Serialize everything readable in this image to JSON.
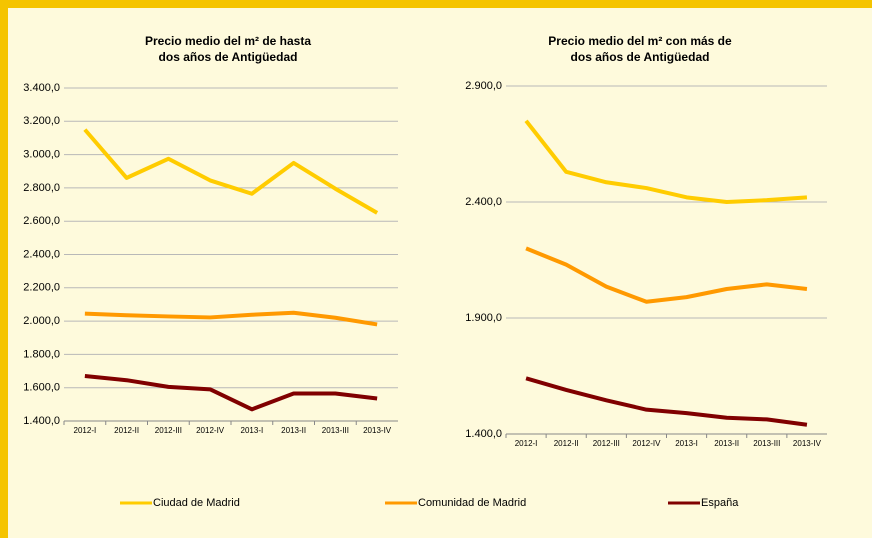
{
  "chart_data": [
    {
      "type": "line",
      "title": [
        "Precio medio del m² de hasta",
        "dos años de Antigüedad"
      ],
      "categories": [
        "2012-I",
        "2012-II",
        "2012-III",
        "2012-IV",
        "2013-I",
        "2013-II",
        "2013-III",
        "2013-IV"
      ],
      "series": [
        {
          "name": "Ciudad de Madrid",
          "color": "#ffcc00",
          "values": [
            3150,
            2860,
            2975,
            2845,
            2765,
            2950,
            2795,
            2650
          ]
        },
        {
          "name": "Comunidad de Madrid",
          "color": "#ff9900",
          "values": [
            2045,
            2035,
            2028,
            2022,
            2038,
            2050,
            2020,
            1980
          ]
        },
        {
          "name": "España",
          "color": "#800000",
          "values": [
            1670,
            1645,
            1605,
            1590,
            1470,
            1565,
            1565,
            1535
          ]
        }
      ],
      "ylim": [
        1400,
        3400
      ],
      "yticks": [
        {
          "value": 1400,
          "label": "1.400,0"
        },
        {
          "value": 1600,
          "label": "1.600,0"
        },
        {
          "value": 1800,
          "label": "1.800,0"
        },
        {
          "value": 2000,
          "label": "2.000,0"
        },
        {
          "value": 2200,
          "label": "2.200,0"
        },
        {
          "value": 2400,
          "label": "2.400,0"
        },
        {
          "value": 2600,
          "label": "2.600,0"
        },
        {
          "value": 2800,
          "label": "2.800,0"
        },
        {
          "value": 3000,
          "label": "3.000,0"
        },
        {
          "value": 3200,
          "label": "3.200,0"
        },
        {
          "value": 3400,
          "label": "3.400,0"
        }
      ],
      "grid": true
    },
    {
      "type": "line",
      "title": [
        "Precio medio del m² con más de",
        "dos años de Antigüedad"
      ],
      "categories": [
        "2012-I",
        "2012-II",
        "2012-III",
        "2012-IV",
        "2013-I",
        "2013-II",
        "2013-III",
        "2013-IV"
      ],
      "series": [
        {
          "color": "#ffcc00",
          "values": [
            2750,
            2530,
            2485,
            2460,
            2420,
            2400,
            2408,
            2420
          ]
        },
        {
          "color": "#ff9900",
          "values": [
            2200,
            2130,
            2035,
            1970,
            1990,
            2025,
            2045,
            2025
          ]
        },
        {
          "color": "#800000",
          "values": [
            1640,
            1590,
            1545,
            1505,
            1490,
            1470,
            1463,
            1440
          ]
        }
      ],
      "ylim": [
        1400,
        2900
      ],
      "yticks": [
        {
          "value": 1400,
          "label": "1.400,0"
        },
        {
          "value": 1900,
          "label": "1.900,0"
        },
        {
          "value": 2400,
          "label": "2.400,0"
        },
        {
          "value": 2900,
          "label": "2.900,0"
        }
      ],
      "grid": true
    }
  ]
}
